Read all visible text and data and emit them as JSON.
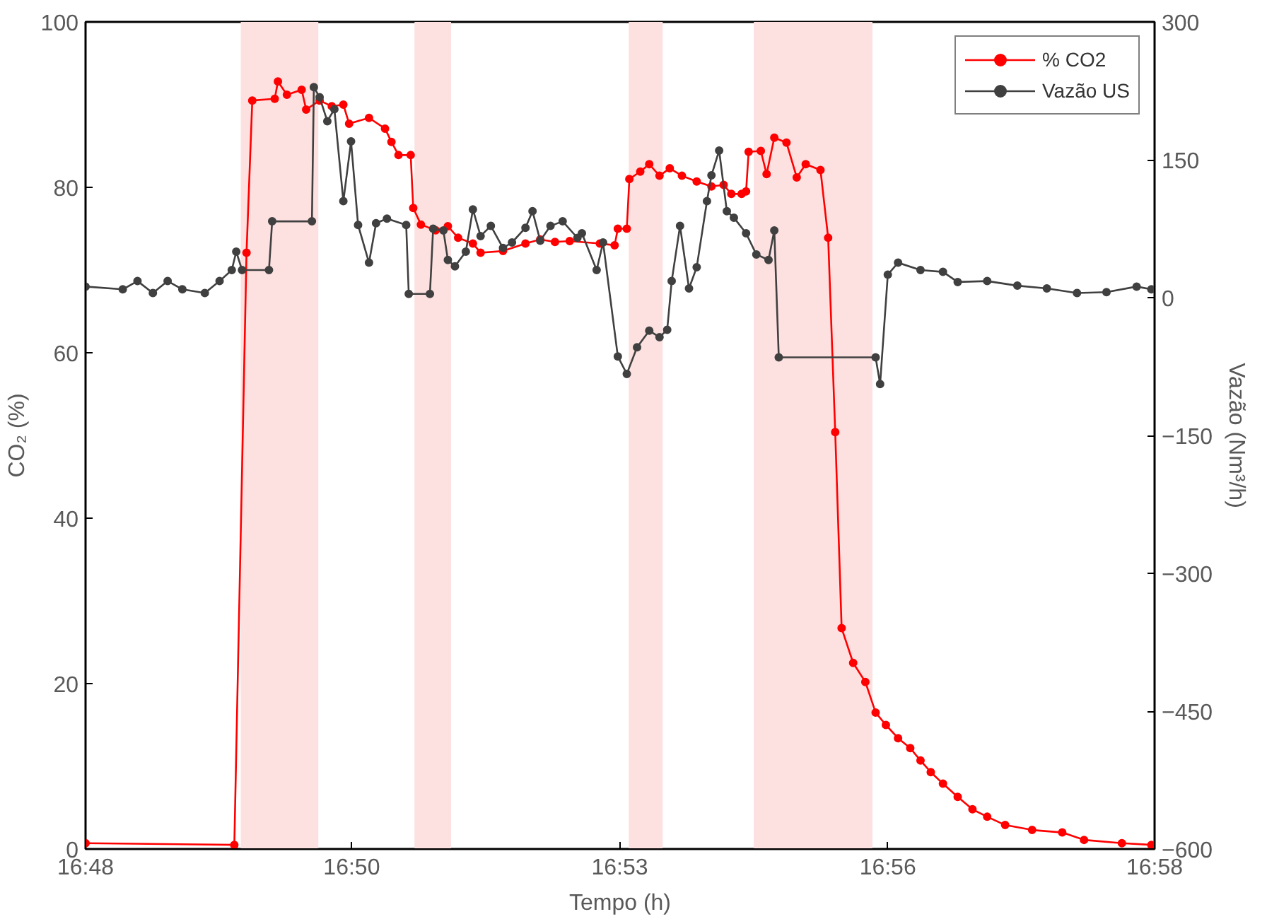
{
  "chart_data": {
    "type": "line",
    "xlabel": "Tempo (h)",
    "ylabel": "CO₂ (%)",
    "y2label": "Vazão (Nm³/h)",
    "xlim": [
      16.8,
      16.9667
    ],
    "xticks": [
      {
        "value": 16.8,
        "label": "16:48"
      },
      {
        "value": 16.8415,
        "label": "16:50"
      },
      {
        "value": 16.8833,
        "label": "16:53"
      },
      {
        "value": 16.9251,
        "label": "16:56"
      },
      {
        "value": 16.9667,
        "label": "16:58"
      }
    ],
    "ylim": [
      0,
      100
    ],
    "yticks": [
      0,
      20,
      40,
      60,
      80,
      100
    ],
    "y2lim": [
      -600,
      300
    ],
    "y2ticks": [
      -600,
      -450,
      -300,
      -150,
      0,
      150,
      300
    ],
    "grid": false,
    "legend": "top right",
    "marker": "circle",
    "line_style": "solid",
    "bands": [
      {
        "axis": "x",
        "from": 16.8242,
        "to": 16.8363,
        "color": "#fde0e0"
      },
      {
        "axis": "x",
        "from": 16.8513,
        "to": 16.857,
        "color": "#fde0e0"
      },
      {
        "axis": "x",
        "from": 16.8847,
        "to": 16.89,
        "color": "#fde0e0"
      },
      {
        "axis": "x",
        "from": 16.9042,
        "to": 16.9227,
        "color": "#fde0e0"
      }
    ],
    "series": [
      {
        "name": "% CO2",
        "color": "#ff0000",
        "x": [
          16.8,
          16.8232,
          16.8251,
          16.826,
          16.8295,
          16.83,
          16.8314,
          16.8337,
          16.8344,
          16.8365,
          16.8384,
          16.8402,
          16.8411,
          16.8442,
          16.8467,
          16.8477,
          16.8488,
          16.8507,
          16.8511,
          16.8523,
          16.8546,
          16.8565,
          16.8581,
          16.8604,
          16.8616,
          16.8651,
          16.8686,
          16.8709,
          16.8732,
          16.8755,
          16.8802,
          16.8825,
          16.883,
          16.8844,
          16.8848,
          16.8865,
          16.8879,
          16.8895,
          16.8911,
          16.893,
          16.8953,
          16.8976,
          16.8995,
          16.9007,
          16.9023,
          16.903,
          16.9034,
          16.9053,
          16.9062,
          16.9074,
          16.9093,
          16.9109,
          16.9123,
          16.9146,
          16.9158,
          16.9169,
          16.9179,
          16.9197,
          16.9216,
          16.9232,
          16.9248,
          16.9267,
          16.9286,
          16.9302,
          16.9318,
          16.9337,
          16.936,
          16.9383,
          16.9406,
          16.9434,
          16.9476,
          16.9523,
          16.9557,
          16.9616,
          16.9662
        ],
        "values": [
          0.7,
          0.5,
          72.1,
          90.5,
          90.7,
          92.8,
          91.2,
          91.8,
          89.4,
          90.5,
          89.8,
          90.0,
          87.7,
          88.4,
          87.1,
          85.5,
          83.9,
          83.9,
          77.5,
          75.5,
          74.8,
          75.3,
          73.9,
          73.2,
          72.1,
          72.3,
          73.2,
          73.7,
          73.4,
          73.5,
          73.2,
          73.0,
          75.0,
          75.0,
          81.0,
          81.9,
          82.8,
          81.4,
          82.3,
          81.4,
          80.7,
          80.1,
          80.3,
          79.2,
          79.2,
          79.5,
          84.3,
          84.4,
          81.6,
          86.0,
          85.4,
          81.2,
          82.8,
          82.1,
          73.9,
          50.4,
          26.7,
          22.5,
          20.2,
          16.5,
          15.0,
          13.4,
          12.2,
          10.7,
          9.3,
          7.9,
          6.3,
          4.8,
          3.9,
          2.9,
          2.3,
          2.0,
          1.1,
          0.7,
          0.5
        ]
      },
      {
        "name": "Vazão US",
        "color": "#404040",
        "axis": "y2",
        "x": [
          16.8,
          16.8058,
          16.8081,
          16.8105,
          16.8128,
          16.8151,
          16.8186,
          16.8209,
          16.8228,
          16.8235,
          16.8244,
          16.8286,
          16.8291,
          16.8353,
          16.8356,
          16.8365,
          16.8377,
          16.8388,
          16.8402,
          16.8414,
          16.8425,
          16.8442,
          16.8453,
          16.847,
          16.85,
          16.8504,
          16.8537,
          16.8542,
          16.8558,
          16.8565,
          16.8576,
          16.8593,
          16.8604,
          16.8616,
          16.8632,
          16.8651,
          16.8665,
          16.8686,
          16.8697,
          16.8709,
          16.8725,
          16.8744,
          16.8767,
          16.8774,
          16.8797,
          16.8807,
          16.883,
          16.8844,
          16.886,
          16.8879,
          16.8895,
          16.8907,
          16.8914,
          16.8927,
          16.8941,
          16.8953,
          16.8969,
          16.8976,
          16.8988,
          16.9,
          16.9011,
          16.903,
          16.9046,
          16.9065,
          16.9074,
          16.9081,
          16.9232,
          16.9239,
          16.9251,
          16.9267,
          16.9302,
          16.9337,
          16.936,
          16.9406,
          16.9453,
          16.9499,
          16.9546,
          16.9592,
          16.9639,
          16.9662
        ],
        "values": [
          12,
          9,
          18,
          5,
          18,
          9,
          5,
          18,
          30,
          50,
          30,
          30,
          83,
          83,
          229,
          218,
          192,
          205,
          105,
          170,
          79,
          38,
          81,
          86,
          79,
          4,
          4,
          75,
          73,
          41,
          34,
          50,
          96,
          67,
          78,
          54,
          60,
          76,
          94,
          62,
          78,
          83,
          65,
          70,
          30,
          60,
          -64,
          -83,
          -54,
          -36,
          -43,
          -35,
          18,
          78,
          10,
          33,
          105,
          133,
          160,
          94,
          87,
          70,
          47,
          41,
          73,
          -65,
          -65,
          -94,
          25,
          38,
          30,
          28,
          17,
          18,
          13,
          10,
          5,
          6,
          12,
          9
        ]
      }
    ]
  }
}
